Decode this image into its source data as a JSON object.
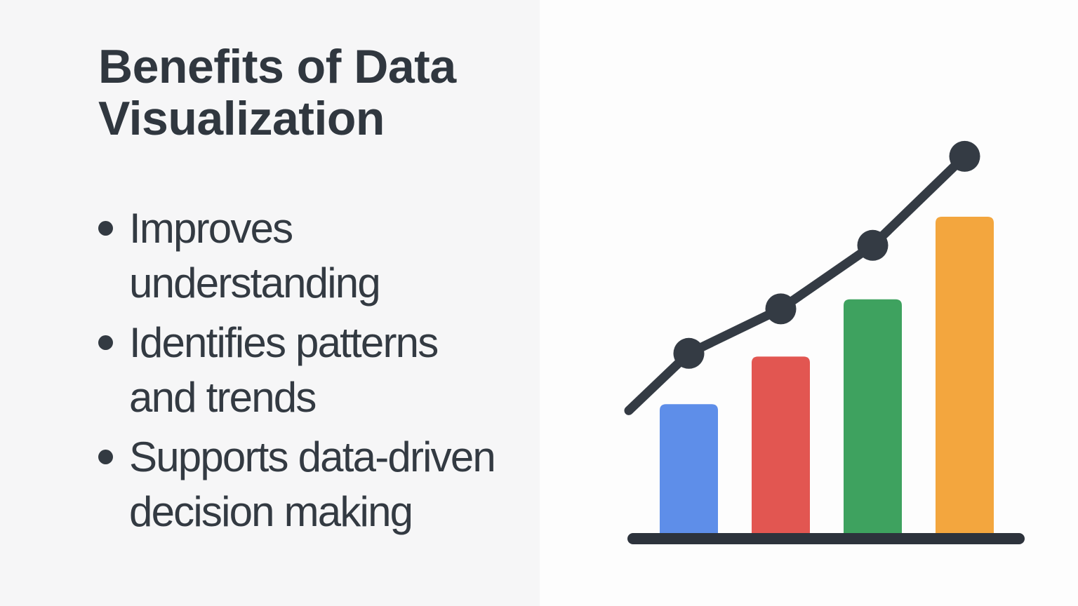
{
  "slide": {
    "title_lines": [
      "Benefits of Data",
      "Visualization"
    ],
    "bullets": [
      {
        "line1": "Improves",
        "line2": "understanding"
      },
      {
        "line1": "Identifies patterns",
        "line2": "and trends"
      },
      {
        "line1": "Supports data-driven",
        "line2": "decision making"
      }
    ]
  },
  "colors": {
    "left_panel_bg": "#f6f6f7",
    "right_panel_bg": "#fdfdfd",
    "heading_text": "#30373f",
    "body_text": "#333a42",
    "bullet_dot": "#333a42"
  },
  "chart_data": {
    "type": "bar",
    "title": "",
    "categories": [
      "",
      "",
      "",
      ""
    ],
    "values": [
      41,
      56,
      74,
      100
    ],
    "bar_colors": [
      "#5e8ee9",
      "#e25651",
      "#3ea25f",
      "#f3a63e"
    ],
    "ylim": [
      0,
      125
    ],
    "units": "relative (decorative chart, no numeric labels shown)",
    "grid": "off",
    "legend": "none",
    "axis_color": "#2d333c",
    "overlay_line": {
      "type": "line",
      "values": [
        39,
        57,
        71,
        91,
        119
      ],
      "dots": [
        false,
        true,
        true,
        true,
        true
      ],
      "dot_radius": 22,
      "stroke_width": 13,
      "color": "#343b44"
    }
  }
}
